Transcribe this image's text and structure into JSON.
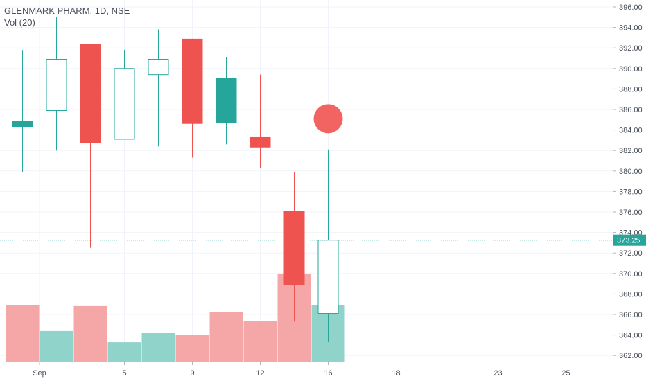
{
  "legend": {
    "title": "GLENMARK PHARM, 1D, NSE",
    "volume": "Vol (20)"
  },
  "colors": {
    "up": "#26a69a",
    "down": "#ef5350",
    "up_volume": "#8fd3cb",
    "down_volume": "#f5a6a6",
    "grid": "#f0f3fa",
    "axis_text": "#4a4f5a",
    "last_price": "#26a69a",
    "marker": "#ef5350"
  },
  "chart_data": {
    "type": "candlestick",
    "symbol": "GLENMARK PHARM",
    "interval": "1D",
    "exchange": "NSE",
    "grid": true,
    "ylim": [
      361.3,
      396.7
    ],
    "y_ticks": [
      "362.00",
      "364.00",
      "366.00",
      "368.00",
      "370.00",
      "372.00",
      "374.00",
      "376.00",
      "378.00",
      "380.00",
      "382.00",
      "384.00",
      "386.00",
      "388.00",
      "390.00",
      "392.00",
      "394.00",
      "396.00"
    ],
    "x_ticks": [
      {
        "label": "Sep",
        "slot": 1
      },
      {
        "label": "5",
        "slot": 3.5
      },
      {
        "label": "9",
        "slot": 5.5
      },
      {
        "label": "12",
        "slot": 7.5
      },
      {
        "label": "16",
        "slot": 9.5
      },
      {
        "label": "18",
        "slot": 11.5
      },
      {
        "label": "23",
        "slot": 14.5
      },
      {
        "label": "25",
        "slot": 16.5
      }
    ],
    "candles": [
      {
        "open": 384.3,
        "high": 391.8,
        "low": 379.9,
        "close": 384.9,
        "dir": "up",
        "hollow": false
      },
      {
        "open": 385.9,
        "high": 395.0,
        "low": 382.0,
        "close": 390.9,
        "dir": "up",
        "hollow": true
      },
      {
        "open": 392.4,
        "high": 392.4,
        "low": 372.5,
        "close": 382.7,
        "dir": "down",
        "hollow": false
      },
      {
        "open": 383.1,
        "high": 391.8,
        "low": 383.1,
        "close": 390.0,
        "dir": "up",
        "hollow": true
      },
      {
        "open": 389.4,
        "high": 393.8,
        "low": 382.4,
        "close": 390.9,
        "dir": "up",
        "hollow": true
      },
      {
        "open": 392.9,
        "high": 392.9,
        "low": 381.3,
        "close": 384.6,
        "dir": "down",
        "hollow": false
      },
      {
        "open": 384.7,
        "high": 391.1,
        "low": 382.6,
        "close": 389.1,
        "dir": "up",
        "hollow": false
      },
      {
        "open": 383.3,
        "high": 389.4,
        "low": 380.3,
        "close": 382.3,
        "dir": "down",
        "hollow": false
      },
      {
        "open": 376.1,
        "high": 379.9,
        "low": 365.3,
        "close": 368.9,
        "dir": "down",
        "hollow": false
      },
      {
        "open": 366.1,
        "high": 382.1,
        "low": 363.3,
        "close": 373.25,
        "dir": "up",
        "hollow": true
      }
    ],
    "volumes": [
      {
        "value": 0.9,
        "dir": "down"
      },
      {
        "value": 0.49,
        "dir": "up"
      },
      {
        "value": 0.89,
        "dir": "down"
      },
      {
        "value": 0.31,
        "dir": "up"
      },
      {
        "value": 0.46,
        "dir": "up"
      },
      {
        "value": 0.43,
        "dir": "down"
      },
      {
        "value": 0.8,
        "dir": "down"
      },
      {
        "value": 0.65,
        "dir": "down"
      },
      {
        "value": 1.41,
        "dir": "down"
      },
      {
        "value": 0.9,
        "dir": "up"
      }
    ],
    "last_price": {
      "value": 373.25,
      "label": "373.25"
    },
    "marker": {
      "slot": 9.5,
      "price": 385.1
    }
  }
}
